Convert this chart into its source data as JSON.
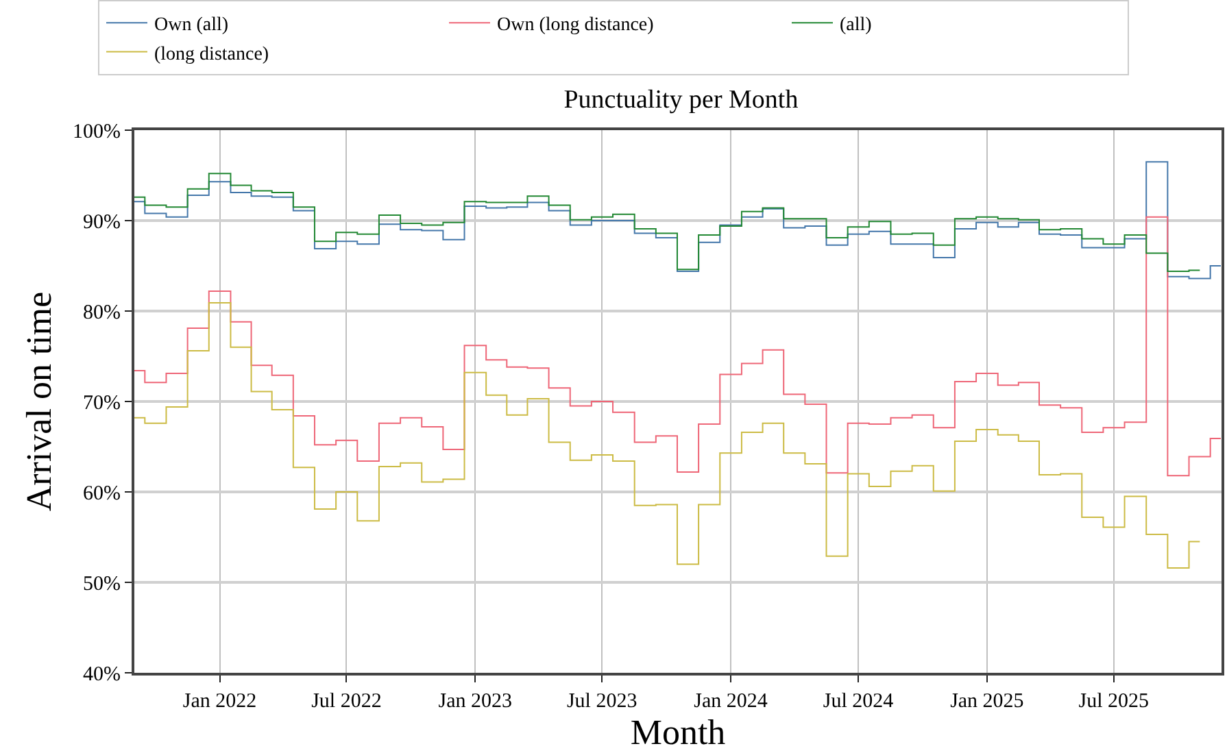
{
  "chart_data": {
    "type": "step",
    "title": "Punctuality per Month",
    "xlabel": "Month",
    "ylabel": "Arrival on time",
    "x": [
      "2021-09",
      "2021-10",
      "2021-11",
      "2021-12",
      "2022-01",
      "2022-02",
      "2022-03",
      "2022-04",
      "2022-05",
      "2022-06",
      "2022-07",
      "2022-08",
      "2022-09",
      "2022-10",
      "2022-11",
      "2022-12",
      "2023-01",
      "2023-02",
      "2023-03",
      "2023-04",
      "2023-05",
      "2023-06",
      "2023-07",
      "2023-08",
      "2023-09",
      "2023-10",
      "2023-11",
      "2023-12",
      "2024-01",
      "2024-02",
      "2024-03",
      "2024-04",
      "2024-05",
      "2024-06",
      "2024-07",
      "2024-08",
      "2024-09",
      "2024-10",
      "2024-11",
      "2024-12",
      "2025-01",
      "2025-02",
      "2025-03",
      "2025-04",
      "2025-05",
      "2025-06",
      "2025-07",
      "2025-08",
      "2025-09",
      "2025-10",
      "2025-11",
      "2025-12"
    ],
    "series": [
      {
        "name": "Own (all)",
        "color": "#4477aa",
        "values": [
          92.1,
          90.8,
          90.4,
          92.8,
          94.3,
          93.1,
          92.7,
          92.6,
          91.1,
          86.9,
          87.7,
          87.4,
          89.6,
          89.0,
          88.9,
          87.9,
          91.6,
          91.4,
          91.5,
          92.0,
          91.1,
          89.5,
          90.0,
          90.0,
          88.6,
          88.1,
          84.4,
          87.6,
          89.5,
          90.4,
          91.3,
          89.2,
          89.4,
          87.3,
          88.5,
          88.8,
          87.4,
          87.4,
          85.9,
          89.1,
          89.8,
          89.3,
          89.8,
          88.5,
          88.4,
          87.0,
          87.0,
          88.0,
          96.5,
          83.8,
          83.6,
          85.0
        ]
      },
      {
        "name": "Own (long distance)",
        "color": "#ee6677",
        "values": [
          73.4,
          72.1,
          73.1,
          78.1,
          82.2,
          78.8,
          74.0,
          72.9,
          68.4,
          65.2,
          65.7,
          63.4,
          67.6,
          68.2,
          67.2,
          64.7,
          76.2,
          74.6,
          73.8,
          73.7,
          71.5,
          69.5,
          70.0,
          68.8,
          65.5,
          66.2,
          62.2,
          67.5,
          73.0,
          74.2,
          75.7,
          70.8,
          69.7,
          62.1,
          67.6,
          67.5,
          68.2,
          68.5,
          67.1,
          72.2,
          73.1,
          71.8,
          72.1,
          69.6,
          69.3,
          66.6,
          67.1,
          67.7,
          90.4,
          61.8,
          63.9,
          65.9
        ]
      },
      {
        "name": "(all)",
        "color": "#228833",
        "values": [
          92.6,
          91.7,
          91.5,
          93.5,
          95.2,
          93.9,
          93.3,
          93.1,
          91.5,
          87.7,
          88.7,
          88.5,
          90.6,
          89.7,
          89.5,
          89.8,
          92.1,
          92.0,
          92.0,
          92.7,
          91.7,
          90.1,
          90.4,
          90.7,
          89.1,
          88.6,
          84.6,
          88.4,
          89.4,
          91.0,
          91.4,
          90.2,
          90.2,
          88.1,
          89.3,
          89.9,
          88.5,
          88.6,
          87.3,
          90.2,
          90.4,
          90.2,
          90.1,
          89.0,
          89.1,
          88.0,
          87.4,
          88.4,
          86.4,
          84.4,
          84.5,
          null
        ]
      },
      {
        "name": "(long distance)",
        "color": "#ccbb44",
        "values": [
          68.2,
          67.6,
          69.4,
          75.6,
          80.9,
          76.0,
          71.1,
          69.1,
          62.7,
          58.1,
          60.0,
          56.8,
          62.8,
          63.2,
          61.1,
          61.4,
          73.2,
          70.7,
          68.5,
          70.3,
          65.5,
          63.5,
          64.1,
          63.4,
          58.5,
          58.6,
          52.0,
          58.6,
          64.3,
          66.6,
          67.6,
          64.3,
          63.1,
          52.9,
          62.0,
          60.6,
          62.3,
          62.9,
          60.1,
          65.6,
          66.9,
          66.3,
          65.6,
          61.9,
          62.0,
          57.2,
          56.1,
          59.5,
          55.3,
          51.6,
          54.5,
          null
        ]
      }
    ],
    "xlim": [
      "2021-09-01",
      "2025-12-02"
    ],
    "xticks": [
      {
        "value": "2022-01",
        "label": "Jan 2022"
      },
      {
        "value": "2022-07",
        "label": "Jul 2022"
      },
      {
        "value": "2023-01",
        "label": "Jan 2023"
      },
      {
        "value": "2023-07",
        "label": "Jul 2023"
      },
      {
        "value": "2024-01",
        "label": "Jan 2024"
      },
      {
        "value": "2024-07",
        "label": "Jul 2024"
      },
      {
        "value": "2025-01",
        "label": "Jan 2025"
      },
      {
        "value": "2025-07",
        "label": "Jul 2025"
      }
    ],
    "ylim": [
      40,
      100
    ],
    "yticks": [
      {
        "value": 40,
        "label": "40%"
      },
      {
        "value": 50,
        "label": "50%"
      },
      {
        "value": 60,
        "label": "60%"
      },
      {
        "value": 70,
        "label": "70%"
      },
      {
        "value": 80,
        "label": "80%"
      },
      {
        "value": 90,
        "label": "90%"
      },
      {
        "value": 100,
        "label": "100%"
      }
    ],
    "grid": true,
    "legend": "top",
    "marker": "none",
    "line_style": "solid"
  }
}
